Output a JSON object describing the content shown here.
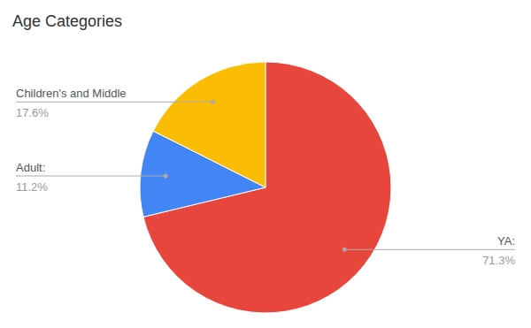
{
  "chart_data": {
    "type": "pie",
    "title": "Age Categories",
    "categories": [
      "YA:",
      "Adult:",
      "Children's and Middle"
    ],
    "values": [
      71.3,
      11.2,
      17.6
    ],
    "value_labels": [
      "71.3%",
      "11.2%",
      "17.6%"
    ],
    "colors": [
      "#E8453C",
      "#4285F4",
      "#FBBC04"
    ]
  }
}
